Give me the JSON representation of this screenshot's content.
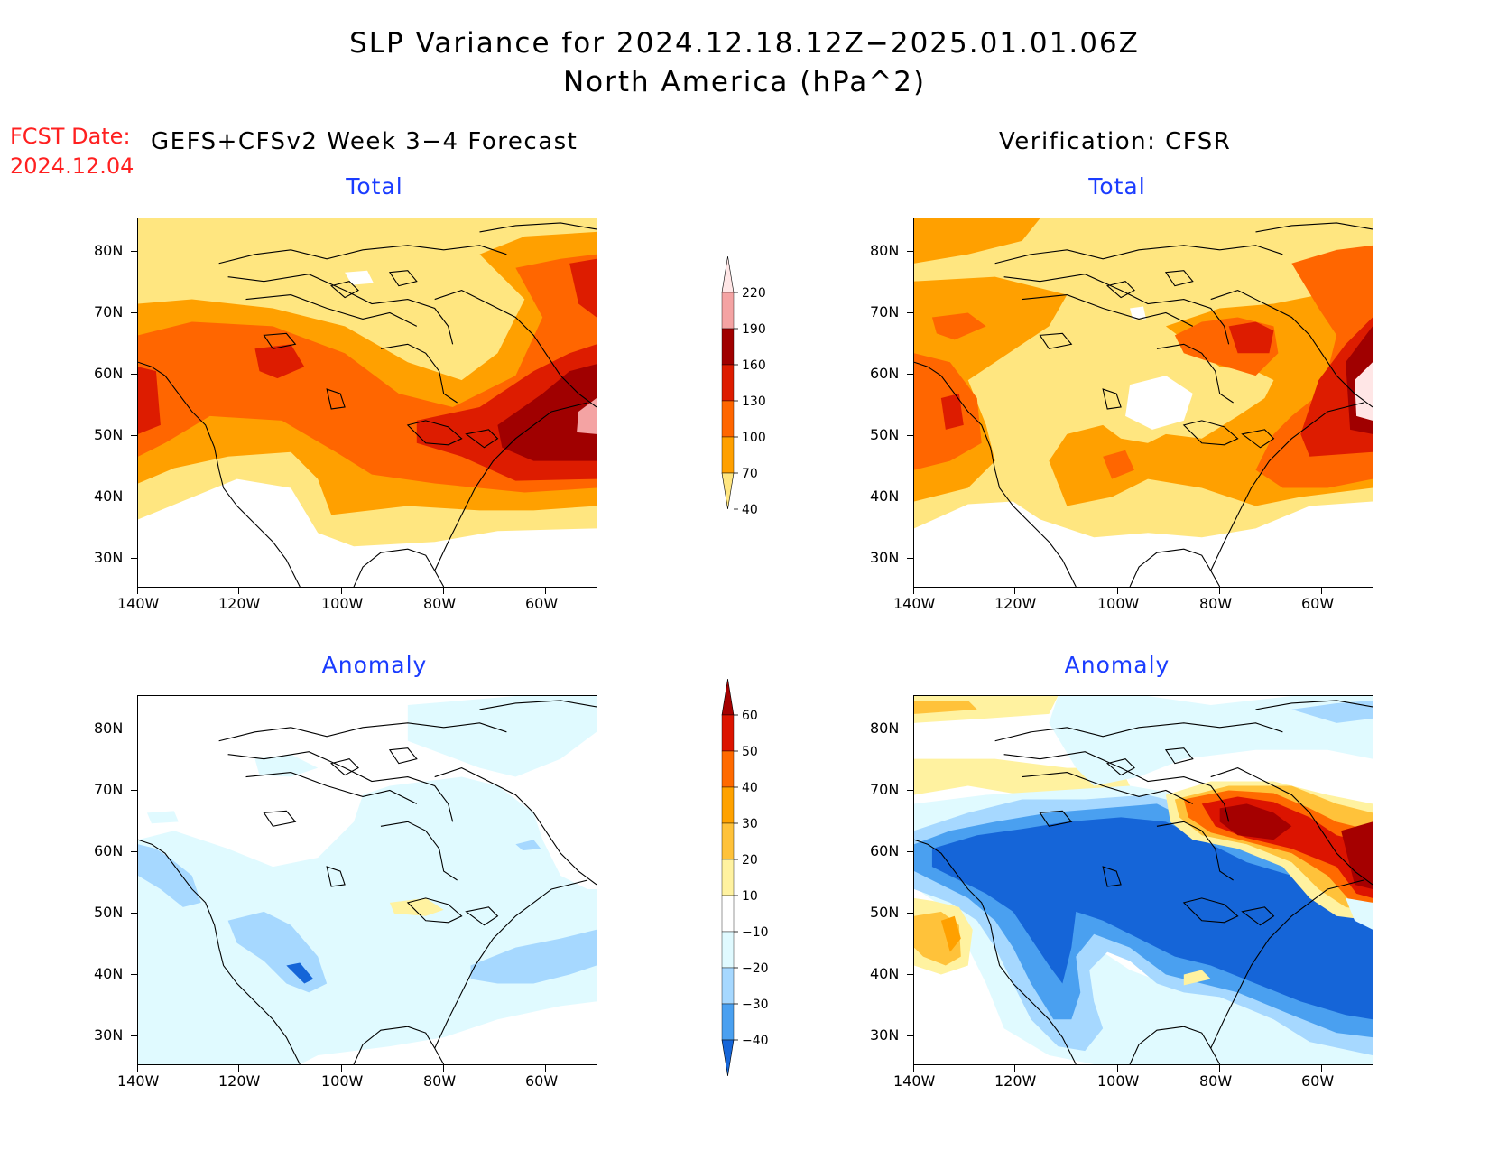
{
  "title": {
    "line1": "SLP Variance for 2024.12.18.12Z−2025.01.01.06Z",
    "line2": "North America (hPa^2)"
  },
  "fcst": {
    "label": "FCST Date:",
    "date": "2024.12.04"
  },
  "left_header": "GEFS+CFSv2 Week 3−4 Forecast",
  "right_header": "Verification: CFSR",
  "panels": {
    "fcst_total": {
      "label": "Total"
    },
    "verif_total": {
      "label": "Total"
    },
    "fcst_anom": {
      "label": "Anomaly"
    },
    "verif_anom": {
      "label": "Anomaly"
    }
  },
  "axes": {
    "lat_labels": [
      "80N",
      "70N",
      "60N",
      "50N",
      "40N",
      "30N"
    ],
    "lon_labels": [
      "140W",
      "120W",
      "100W",
      "80W",
      "60W"
    ]
  },
  "colorbars": {
    "total": {
      "levels": [
        "220",
        "190",
        "160",
        "130",
        "100",
        "70",
        "40"
      ],
      "colors": [
        "#ffe6e6",
        "#f4a3a3",
        "#a00000",
        "#dd1c00",
        "#ff6600",
        "#ffa000",
        "#ffe680"
      ]
    },
    "anomaly": {
      "levels": [
        "60",
        "50",
        "40",
        "30",
        "20",
        "10",
        "−10",
        "−20",
        "−30",
        "−40"
      ],
      "colors": [
        "#a50000",
        "#dc1400",
        "#ff6a00",
        "#ffa200",
        "#ffc23a",
        "#fff2a0",
        "#ffffff",
        "#e0faff",
        "#a6d8ff",
        "#4aa0f0",
        "#1565d8"
      ]
    }
  }
}
